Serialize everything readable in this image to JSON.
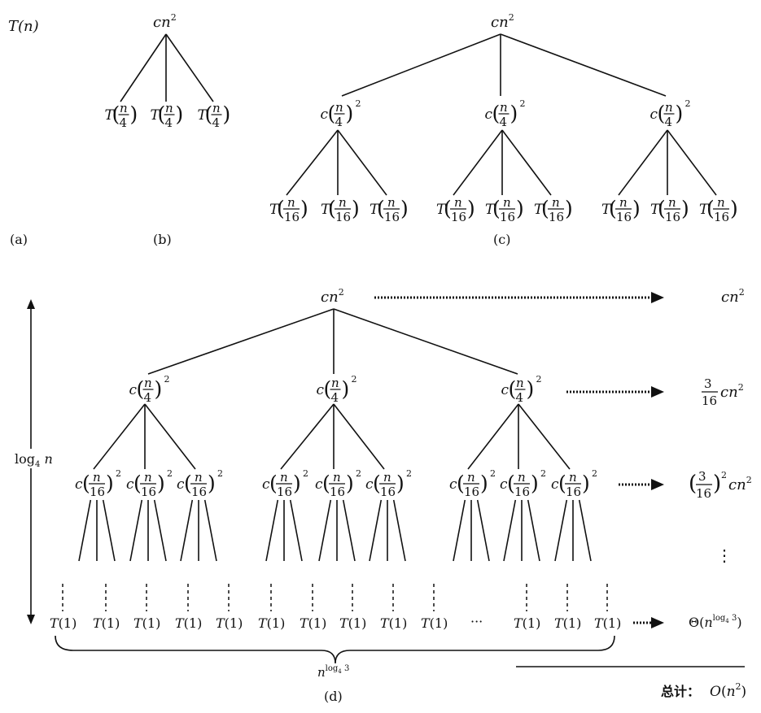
{
  "panels": {
    "a": {
      "caption": "(a)",
      "root": "T(n)"
    },
    "b": {
      "caption": "(b)",
      "root": "cn²",
      "children": [
        "T(n/4)",
        "T(n/4)",
        "T(n/4)"
      ]
    },
    "c": {
      "caption": "(c)",
      "root": "cn²",
      "level1": "c(n/4)²",
      "level2": "T(n/16)"
    },
    "d": {
      "caption": "(d)",
      "root": "cn²",
      "level1": "c(n/4)²",
      "level2": "c(n/16)²",
      "leaf": "T(1)",
      "leaf_ellipsis": "···",
      "height_label": "log₄ n",
      "width_label": "n^(log₄ 3)",
      "level_costs": [
        "cn²",
        "(3/16) cn²",
        "(3/16)² cn²",
        "⋮",
        "Θ(n^(log₄ 3))"
      ],
      "total_prefix": "总计：",
      "total_value": "O(n²)"
    }
  }
}
